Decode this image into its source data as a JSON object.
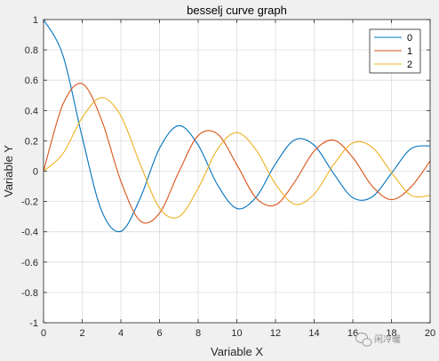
{
  "chart_data": {
    "type": "line",
    "title": "besselj curve graph",
    "xlabel": "Variable X",
    "ylabel": "Variable Y",
    "xlim": [
      0,
      20
    ],
    "ylim": [
      -1,
      1
    ],
    "xticks": [
      0,
      2,
      4,
      6,
      8,
      10,
      12,
      14,
      16,
      18,
      20
    ],
    "yticks": [
      -1,
      -0.8,
      -0.6,
      -0.4,
      -0.2,
      0,
      0.2,
      0.4,
      0.6,
      0.8,
      1
    ],
    "grid": true,
    "legend_position": "top-right",
    "series": [
      {
        "name": "0",
        "color": "#0072BD",
        "x": [
          0,
          1,
          2,
          3,
          4,
          5,
          6,
          7,
          8,
          9,
          10,
          11,
          12,
          13,
          14,
          15,
          16,
          17,
          18,
          19,
          20
        ],
        "y": [
          1.0,
          0.765,
          0.224,
          -0.26,
          -0.397,
          -0.178,
          0.151,
          0.3,
          0.172,
          -0.09,
          -0.246,
          -0.171,
          0.048,
          0.207,
          0.171,
          -0.014,
          -0.175,
          -0.17,
          -0.014,
          0.147,
          0.167
        ]
      },
      {
        "name": "1",
        "color": "#D95319",
        "x": [
          0,
          1,
          2,
          3,
          4,
          5,
          6,
          7,
          8,
          9,
          10,
          11,
          12,
          13,
          14,
          15,
          16,
          17,
          18,
          19,
          20
        ],
        "y": [
          0.0,
          0.44,
          0.577,
          0.339,
          -0.066,
          -0.328,
          -0.277,
          -0.005,
          0.235,
          0.245,
          0.043,
          -0.177,
          -0.223,
          -0.07,
          0.133,
          0.205,
          0.09,
          -0.098,
          -0.188,
          -0.106,
          0.067
        ]
      },
      {
        "name": "2",
        "color": "#EDB120",
        "x": [
          0,
          1,
          2,
          3,
          4,
          5,
          6,
          7,
          8,
          9,
          10,
          11,
          12,
          13,
          14,
          15,
          16,
          17,
          18,
          19,
          20
        ],
        "y": [
          0.0,
          0.115,
          0.353,
          0.486,
          0.364,
          0.047,
          -0.243,
          -0.301,
          -0.113,
          0.145,
          0.255,
          0.139,
          -0.085,
          -0.218,
          -0.152,
          0.042,
          0.186,
          0.158,
          -0.008,
          -0.158,
          -0.16
        ]
      }
    ]
  },
  "watermark": {
    "text": "闲冷暖",
    "icon": "wechat-icon"
  }
}
